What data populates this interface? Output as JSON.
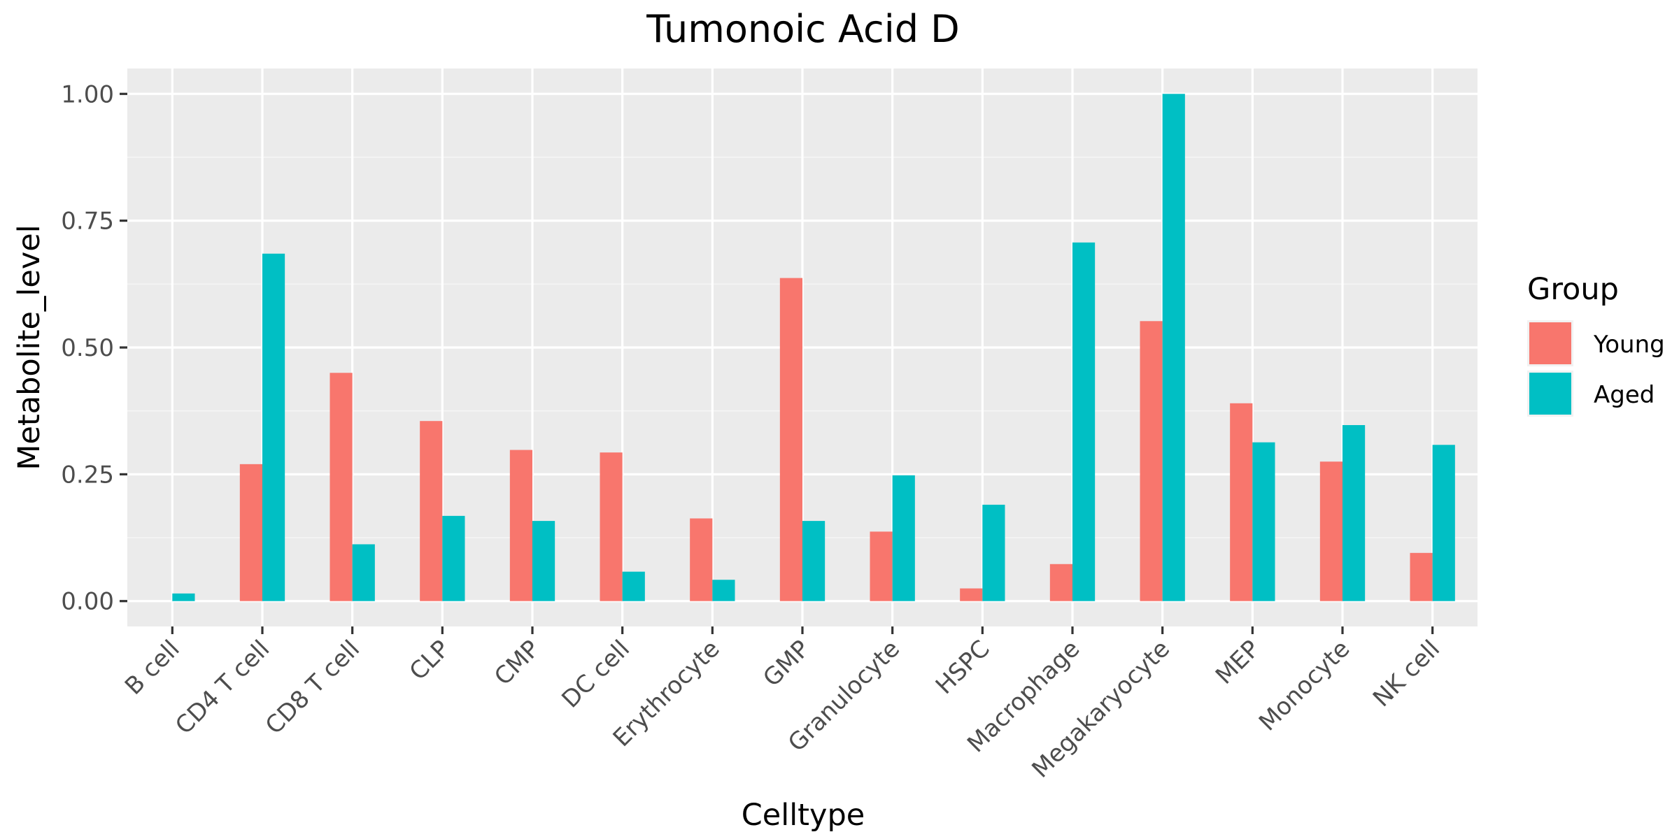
{
  "chart_data": {
    "type": "bar",
    "title": "Tumonoic Acid D",
    "xlabel": "Celltype",
    "ylabel": "Metabolite_level",
    "ylim": [
      -0.05,
      1.05
    ],
    "yticks": [
      0.0,
      0.25,
      0.5,
      0.75,
      1.0
    ],
    "ytick_labels": [
      "0.00",
      "0.25",
      "0.50",
      "0.75",
      "1.00"
    ],
    "categories": [
      "B cell",
      "CD4 T cell",
      "CD8 T cell",
      "CLP",
      "CMP",
      "DC cell",
      "Erythrocyte",
      "GMP",
      "Granulocyte",
      "HSPC",
      "Macrophage",
      "Megakaryocyte",
      "MEP",
      "Monocyte",
      "NK cell"
    ],
    "series": [
      {
        "name": "Young",
        "color": "#F8766D",
        "values": [
          0.0,
          0.27,
          0.45,
          0.355,
          0.298,
          0.293,
          0.163,
          0.637,
          0.137,
          0.025,
          0.073,
          0.552,
          0.39,
          0.275,
          0.095
        ]
      },
      {
        "name": "Aged",
        "color": "#00BFC4",
        "values": [
          0.015,
          0.685,
          0.112,
          0.168,
          0.158,
          0.058,
          0.042,
          0.158,
          0.248,
          0.19,
          0.707,
          1.0,
          0.313,
          0.347,
          0.308
        ]
      }
    ],
    "grid": true,
    "legend": {
      "title": "Group",
      "placement": "right"
    },
    "colors": {
      "panel_background": "#EBEBEB",
      "grid_major": "#FFFFFF",
      "grid_minor": "#F5F5F5",
      "tick_mark": "#333333"
    }
  }
}
